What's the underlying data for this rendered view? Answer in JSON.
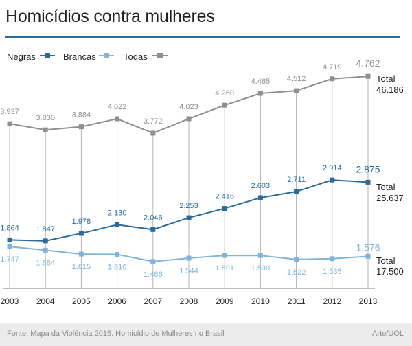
{
  "header": {
    "title": "Homicídios contra mulheres"
  },
  "legend": [
    {
      "label": "Negras",
      "color": "#2b6b9b"
    },
    {
      "label": "Brancas",
      "color": "#7fb4dc"
    },
    {
      "label": "Todas",
      "color": "#8f8f8f"
    }
  ],
  "totals": [
    {
      "label": "Total",
      "value": "46.186"
    },
    {
      "label": "Total",
      "value": "25.637"
    },
    {
      "label": "Total",
      "value": "17.500"
    }
  ],
  "footer": {
    "source": "Fonte: Mapa da Violência 2015. Homicídio de Mulheres no Brasil",
    "credit": "Arte/UOL"
  },
  "chart_data": {
    "type": "line",
    "title": "Homicídios contra mulheres",
    "x": [
      "2003",
      "2004",
      "2005",
      "2006",
      "2007",
      "2008",
      "2009",
      "2010",
      "2011",
      "2012",
      "2013"
    ],
    "ylim": [
      1400,
      4900
    ],
    "grid": "vertical lines at each year",
    "legend_position": "top-left",
    "series": [
      {
        "name": "Todas",
        "color": "#8f8f8f",
        "values": [
          3937,
          3830,
          3884,
          4022,
          3772,
          4023,
          4260,
          4465,
          4512,
          4719,
          4762
        ],
        "labels": [
          "3.937",
          "3.830",
          "3.884",
          "4.022",
          "3.772",
          "4.023",
          "4.260",
          "4.465",
          "4.512",
          "4.719",
          "4.762"
        ],
        "total": "46.186"
      },
      {
        "name": "Negras",
        "color": "#2b6b9b",
        "values": [
          1864,
          1847,
          1978,
          2130,
          2046,
          2253,
          2416,
          2603,
          2711,
          2914,
          2875
        ],
        "labels": [
          "1.864",
          "1.847",
          "1.978",
          "2.130",
          "2.046",
          "2.253",
          "2.416",
          "2.603",
          "2.711",
          "2.914",
          "2.875"
        ],
        "total": "25.637"
      },
      {
        "name": "Brancas",
        "color": "#7fb4dc",
        "values": [
          1747,
          1684,
          1615,
          1610,
          1486,
          1544,
          1591,
          1590,
          1522,
          1535,
          1576
        ],
        "labels": [
          "1.747",
          "1.684",
          "1.615",
          "1.610",
          "1.486",
          "1.544",
          "1.591",
          "1.590",
          "1.522",
          "1.535",
          "1.576"
        ],
        "total": "17.500"
      }
    ]
  }
}
